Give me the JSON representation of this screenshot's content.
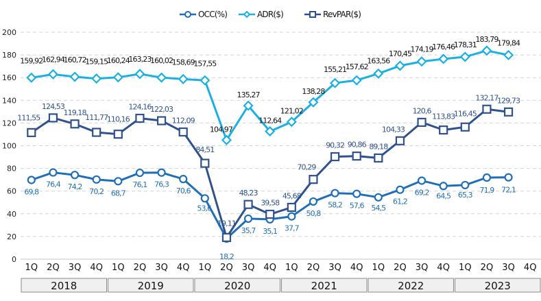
{
  "chart_data": {
    "type": "line",
    "title": "",
    "xlabel": "",
    "ylabel": "",
    "ylim": [
      0,
      200
    ],
    "yticks": [
      0,
      20,
      40,
      60,
      80,
      100,
      120,
      140,
      160,
      180,
      200
    ],
    "grid": true,
    "legend_position": "top-center",
    "categories": [
      "1Q",
      "2Q",
      "3Q",
      "4Q",
      "1Q",
      "2Q",
      "3Q",
      "4Q",
      "1Q",
      "2Q",
      "3Q",
      "4Q",
      "1Q",
      "2Q",
      "3Q",
      "4Q",
      "1Q",
      "2Q",
      "3Q",
      "4Q",
      "1Q",
      "2Q",
      "3Q",
      "4Q"
    ],
    "year_groups": [
      "2018",
      "2019",
      "2020",
      "2021",
      "2022",
      "2023"
    ],
    "series": [
      {
        "name": "OCC(%)",
        "color": "#1f6fb8",
        "marker": "circle",
        "values": [
          69.8,
          76.4,
          74.2,
          70.2,
          68.7,
          76.1,
          76.3,
          70.6,
          53.6,
          18.2,
          35.7,
          35.1,
          37.7,
          50.8,
          58.2,
          57.6,
          54.5,
          61.2,
          69.2,
          64.5,
          65.3,
          71.9,
          72.1,
          null
        ],
        "labels": [
          "69,8",
          "76,4",
          "74,2",
          "70,2",
          "68,7",
          "76,1",
          "76,3",
          "70,6",
          "53,6",
          "18,2",
          "35,7",
          "35,1",
          "37,7",
          "50,8",
          "58,2",
          "57,6",
          "54,5",
          "61,2",
          "69,2",
          "64,5",
          "65,3",
          "71,9",
          "72,1",
          null
        ]
      },
      {
        "name": "ADR($)",
        "color": "#1ab0e3",
        "marker": "diamond",
        "values": [
          159.92,
          162.94,
          160.72,
          159.15,
          160.24,
          163.23,
          160.02,
          158.69,
          157.55,
          104.97,
          135.27,
          112.64,
          121.02,
          138.28,
          155.21,
          157.62,
          163.56,
          170.45,
          174.19,
          176.46,
          178.31,
          183.79,
          179.84,
          null
        ],
        "labels": [
          "159,92",
          "162,94",
          "160,72",
          "159,15",
          "160,24",
          "163,23",
          "160,02",
          "158,69",
          "157,55",
          "104,97",
          "135,27",
          "112,64",
          "121,02",
          "138,28",
          "155,21",
          "157,62",
          "163,56",
          "170,45",
          "174,19",
          "176,46",
          "178,31",
          "183,79",
          "179,84",
          null
        ]
      },
      {
        "name": "RevPAR($)",
        "color": "#2f528f",
        "marker": "square",
        "values": [
          111.55,
          124.53,
          119.18,
          111.77,
          110.16,
          124.16,
          122.03,
          112.09,
          84.51,
          19.11,
          48.23,
          39.58,
          45.68,
          70.29,
          90.32,
          90.86,
          89.18,
          104.33,
          120.6,
          113.83,
          116.45,
          132.17,
          129.73,
          null
        ],
        "labels": [
          "111,55",
          "124,53",
          "119,18",
          "111,77",
          "110,16",
          "124,16",
          "122,03",
          "112,09",
          "84,51",
          "19,11",
          "48,23",
          "39,58",
          "45,68",
          "70,29",
          "90,32",
          "90,86",
          "89,18",
          "104,33",
          "120,6",
          "113,83",
          "116,45",
          "132,17",
          "129,73",
          null
        ]
      }
    ]
  }
}
